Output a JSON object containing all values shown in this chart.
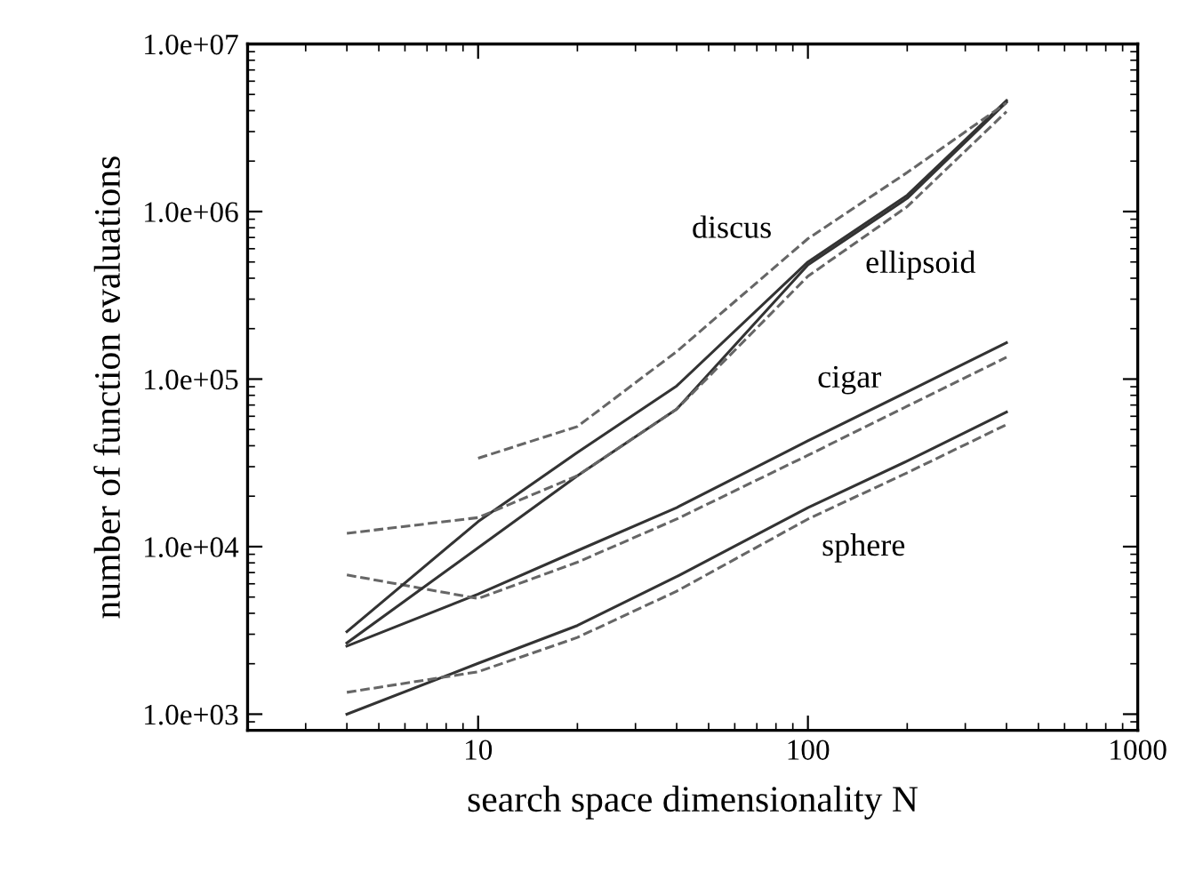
{
  "chart_data": {
    "type": "line",
    "log": "xy",
    "xlabel": "search space dimensionality N",
    "ylabel": "number of function evaluations",
    "xlim": [
      2,
      1000
    ],
    "ylim": [
      800,
      10000000
    ],
    "xticks": [
      10,
      100,
      1000
    ],
    "yticks": [
      {
        "value": 1000,
        "label": "1.0e+03"
      },
      {
        "value": 10000,
        "label": "1.0e+04"
      },
      {
        "value": 100000,
        "label": "1.0e+05"
      },
      {
        "value": 1000000,
        "label": "1.0e+06"
      },
      {
        "value": 10000000,
        "label": "1.0e+07"
      }
    ],
    "grid": false,
    "marker": "none",
    "series": [
      {
        "color": "#333333",
        "line_style": "solid",
        "x": [
          4,
          10,
          20,
          40,
          100,
          200,
          400
        ],
        "values": [
          1000,
          2010,
          3380,
          6620,
          17100,
          32400,
          63500
        ]
      },
      {
        "color": "#666666",
        "line_style": "dashed",
        "x": [
          4,
          10,
          20,
          40,
          100,
          200,
          400
        ],
        "values": [
          1350,
          1790,
          2870,
          5420,
          14600,
          27600,
          53500
        ]
      },
      {
        "color": "#333333",
        "line_style": "solid",
        "x": [
          4,
          10,
          20,
          40,
          100,
          200,
          400
        ],
        "values": [
          2550,
          5210,
          9460,
          17100,
          42800,
          83900,
          165000
        ]
      },
      {
        "color": "#666666",
        "line_style": "dashed",
        "x": [
          4,
          10,
          20,
          40,
          100,
          200,
          400
        ],
        "values": [
          6780,
          4900,
          8070,
          14600,
          35100,
          68900,
          135000
        ]
      },
      {
        "color": "#333333",
        "line_style": "solid",
        "x": [
          4,
          10,
          20,
          40,
          100,
          200,
          400
        ],
        "values": [
          3110,
          14100,
          36500,
          91000,
          500000,
          1250000,
          4600000
        ]
      },
      {
        "color": "#333333",
        "line_style": "solid",
        "x": [
          4,
          10,
          20,
          40,
          100,
          200,
          400
        ],
        "values": [
          2660,
          9840,
          26500,
          66200,
          480000,
          1200000,
          4500000
        ]
      },
      {
        "color": "#666666",
        "line_style": "dashed",
        "x": [
          4,
          10,
          20,
          40,
          100,
          200,
          400
        ],
        "values": [
          12000,
          14900,
          26500,
          66200,
          411000,
          1070000,
          3950000
        ]
      },
      {
        "color": "#666666",
        "line_style": "dashed",
        "x": [
          10,
          20,
          40,
          100,
          200,
          400
        ],
        "values": [
          33700,
          52100,
          146000,
          689000,
          1710000,
          4450000
        ]
      }
    ],
    "annotations": [
      "discus",
      "ellipsoid",
      "cigar",
      "sphere"
    ]
  }
}
